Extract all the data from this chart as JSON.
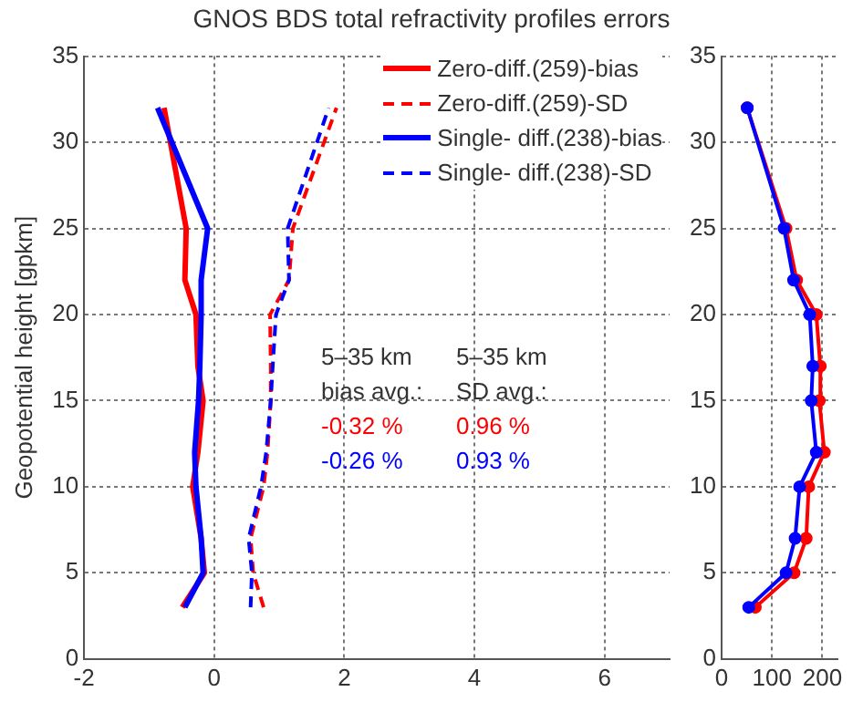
{
  "chart_data": [
    {
      "type": "line",
      "title": "GNOS BDS total refractivity profiles errors",
      "ylabel": "Geopotential height [gpkm]",
      "xlim": [
        -2,
        7
      ],
      "xticks": [
        -2,
        0,
        2,
        4,
        6
      ],
      "ylim": [
        0,
        35
      ],
      "yticks": [
        0,
        5,
        10,
        15,
        20,
        25,
        30,
        35
      ],
      "grid": true,
      "legend": "top right",
      "marker": "none",
      "series": [
        {
          "name": "Zero-diff.(259)-bias",
          "color": "#ff0000",
          "line_style": "solid",
          "x": [
            -0.49,
            -0.15,
            -0.2,
            -0.33,
            -0.25,
            -0.17,
            -0.25,
            -0.28,
            -0.45,
            -0.43,
            -0.77
          ],
          "values": [
            3,
            5,
            7,
            10,
            12,
            15,
            17,
            20,
            22,
            25,
            32
          ]
        },
        {
          "name": "Zero-diff.(259)-SD",
          "color": "#ff0000",
          "line_style": "dashed",
          "x": [
            0.76,
            0.6,
            0.56,
            0.76,
            0.82,
            0.87,
            0.87,
            0.86,
            1.15,
            1.21,
            1.88
          ],
          "values": [
            3,
            5,
            7,
            10,
            12,
            15,
            17,
            20,
            22,
            25,
            32
          ]
        },
        {
          "name": "Single- diff.(238)-bias",
          "color": "#0000ff",
          "line_style": "solid",
          "x": [
            -0.45,
            -0.17,
            -0.2,
            -0.28,
            -0.3,
            -0.24,
            -0.22,
            -0.2,
            -0.2,
            -0.1,
            -0.87
          ],
          "values": [
            3,
            5,
            7,
            10,
            12,
            15,
            17,
            20,
            22,
            25,
            32
          ]
        },
        {
          "name": "Single- diff.(238)-SD",
          "color": "#0000ff",
          "line_style": "dashed",
          "x": [
            0.56,
            0.58,
            0.53,
            0.72,
            0.8,
            0.87,
            0.9,
            0.95,
            1.15,
            1.13,
            1.76
          ],
          "values": [
            3,
            5,
            7,
            10,
            12,
            15,
            17,
            20,
            22,
            25,
            32
          ]
        }
      ],
      "annotations": [
        "5–35 km\nbias avg.:",
        "5–35 km\nSD avg.:",
        "-0.32 %",
        "0.96 %",
        "-0.26 %",
        "0.93 %"
      ]
    },
    {
      "type": "line",
      "xlim": [
        0,
        230
      ],
      "xticks": [
        0,
        100,
        200
      ],
      "ylim": [
        0,
        35
      ],
      "yticks": [
        0,
        5,
        10,
        15,
        20,
        25,
        30,
        35
      ],
      "grid": true,
      "marker": "circle",
      "series": [
        {
          "color": "#ff0000",
          "line_style": "solid",
          "x": [
            67,
            144,
            168,
            173,
            204,
            194,
            196,
            188,
            149,
            128,
            51
          ],
          "values": [
            3,
            5,
            7,
            10,
            12,
            15,
            17,
            20,
            22,
            25,
            32
          ]
        },
        {
          "color": "#0000ff",
          "line_style": "solid",
          "x": [
            54,
            128,
            146,
            155,
            188,
            178,
            181,
            175,
            143,
            124,
            51
          ],
          "values": [
            3,
            5,
            7,
            10,
            12,
            15,
            17,
            20,
            22,
            25,
            32
          ]
        }
      ]
    }
  ]
}
